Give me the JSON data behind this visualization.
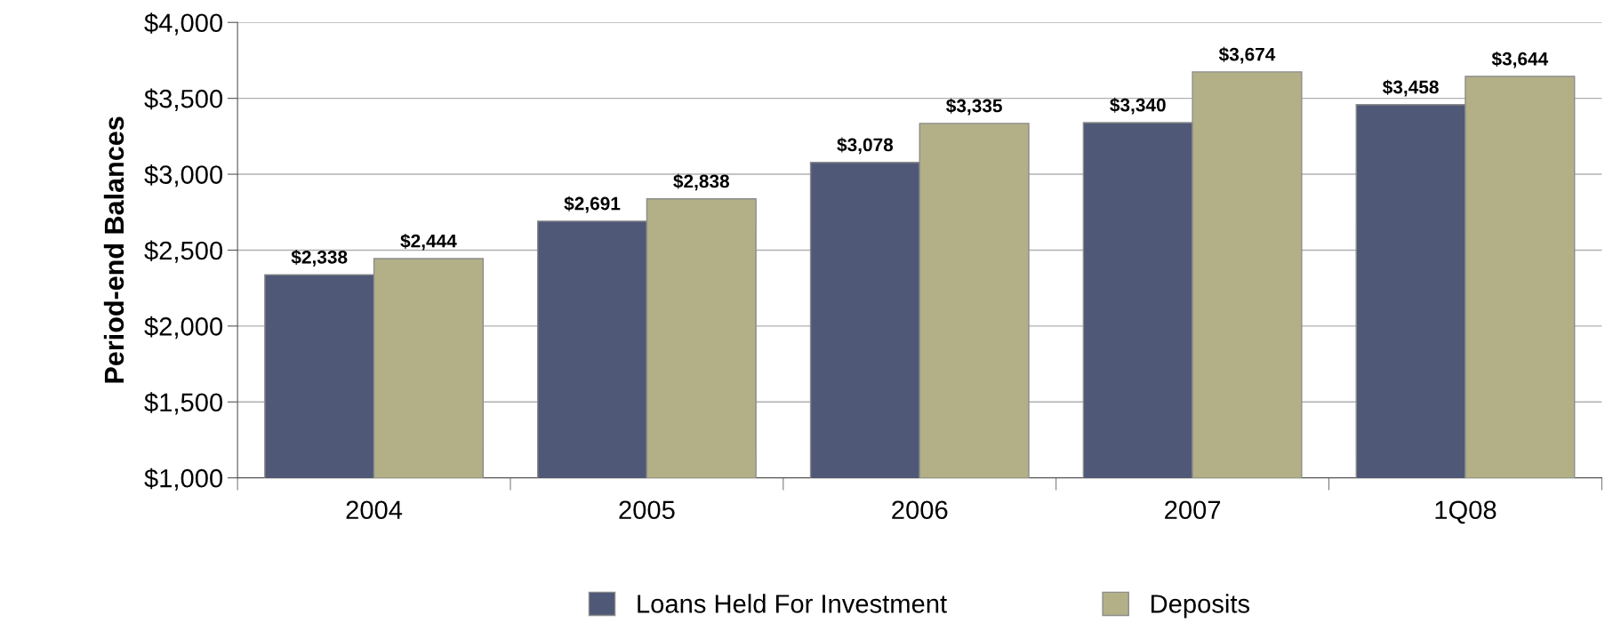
{
  "chart_data": {
    "type": "bar",
    "ylabel": "Period-end Balances",
    "categories": [
      "2004",
      "2005",
      "2006",
      "2007",
      "1Q08"
    ],
    "series": [
      {
        "name": "Loans Held For Investment",
        "color": "#4f5876",
        "values": [
          2338,
          2691,
          3078,
          3340,
          3458
        ],
        "value_labels": [
          "$2,338",
          "$2,691",
          "$3,078",
          "$3,340",
          "$3,458"
        ]
      },
      {
        "name": "Deposits",
        "color": "#b3b087",
        "values": [
          2444,
          2838,
          3335,
          3674,
          3644
        ],
        "value_labels": [
          "$2,444",
          "$2,838",
          "$3,335",
          "$3,674",
          "$3,644"
        ]
      }
    ],
    "ylim": [
      1000,
      4000
    ],
    "yticks": [
      {
        "value": 1000,
        "label": "$1,000"
      },
      {
        "value": 1500,
        "label": "$1,500"
      },
      {
        "value": 2000,
        "label": "$2,000"
      },
      {
        "value": 2500,
        "label": "$2,500"
      },
      {
        "value": 3000,
        "label": "$3,000"
      },
      {
        "value": 3500,
        "label": "$3,500"
      },
      {
        "value": 4000,
        "label": "$4,000"
      }
    ],
    "grid": "y",
    "legend": "bottom"
  }
}
